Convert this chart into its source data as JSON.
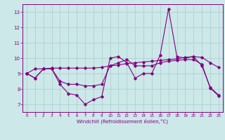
{
  "x": [
    0,
    1,
    2,
    3,
    4,
    5,
    6,
    7,
    8,
    9,
    10,
    11,
    12,
    13,
    14,
    15,
    16,
    17,
    18,
    19,
    20,
    21,
    22,
    23
  ],
  "line1": [
    9.0,
    8.7,
    9.3,
    9.3,
    8.3,
    7.7,
    7.6,
    7.0,
    7.3,
    7.5,
    10.0,
    10.1,
    9.7,
    8.7,
    9.0,
    9.0,
    10.2,
    13.2,
    10.1,
    10.0,
    10.1,
    9.5,
    8.1,
    7.6
  ],
  "line2": [
    9.0,
    8.7,
    9.3,
    9.3,
    8.5,
    8.3,
    8.3,
    8.2,
    8.2,
    8.3,
    9.5,
    9.7,
    9.9,
    9.5,
    9.5,
    9.5,
    9.7,
    9.8,
    9.85,
    9.9,
    9.9,
    9.6,
    8.05,
    7.55
  ],
  "line3": [
    9.0,
    9.3,
    9.3,
    9.35,
    9.35,
    9.35,
    9.35,
    9.35,
    9.35,
    9.4,
    9.5,
    9.55,
    9.65,
    9.7,
    9.75,
    9.8,
    9.85,
    9.9,
    9.95,
    10.05,
    10.1,
    10.05,
    9.7,
    9.4
  ],
  "line_color": "#800080",
  "bg_color": "#cce8e8",
  "grid_color": "#aacccc",
  "xlabel": "Windchill (Refroidissement éolien,°C)",
  "yticks": [
    7,
    8,
    9,
    10,
    11,
    12,
    13
  ],
  "xticks": [
    0,
    1,
    2,
    3,
    4,
    5,
    6,
    7,
    8,
    9,
    10,
    11,
    12,
    13,
    14,
    15,
    16,
    17,
    18,
    19,
    20,
    21,
    22,
    23
  ],
  "ylim": [
    6.5,
    13.5
  ],
  "xlim": [
    -0.5,
    23.5
  ]
}
